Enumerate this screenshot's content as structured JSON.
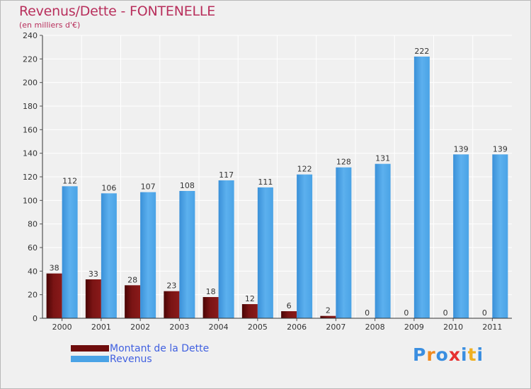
{
  "header": {
    "title": "Revenus/Dette - FONTENELLE",
    "subtitle": "(en milliers d'€)"
  },
  "legend": {
    "items": [
      {
        "label": "Montant de la Dette",
        "color": "#6e0c0c"
      },
      {
        "label": "Revenus",
        "color": "#4aa3e6"
      }
    ]
  },
  "logo": {
    "text": "Proxiti",
    "letters": [
      "P",
      "r",
      "o",
      "x",
      "i",
      "t",
      "i"
    ],
    "colors": [
      "#3a8ee0",
      "#f08a20",
      "#3a8ee0",
      "#e63030",
      "#3a8ee0",
      "#f0b020",
      "#3a8ee0"
    ]
  },
  "chart_data": {
    "type": "bar",
    "title": "Revenus/Dette - FONTENELLE",
    "subtitle": "(en milliers d'€)",
    "categories": [
      "2000",
      "2001",
      "2002",
      "2003",
      "2004",
      "2005",
      "2006",
      "2007",
      "2008",
      "2009",
      "2010",
      "2011"
    ],
    "series": [
      {
        "name": "Montant de la Dette",
        "color": "#6e0c0c",
        "values": [
          38,
          33,
          28,
          23,
          18,
          12,
          6,
          2,
          0,
          0,
          0,
          0
        ]
      },
      {
        "name": "Revenus",
        "color": "#4aa3e6",
        "values": [
          112,
          106,
          107,
          108,
          117,
          111,
          122,
          128,
          131,
          222,
          139,
          139
        ]
      }
    ],
    "ylim": [
      0,
      240
    ],
    "yticks": [
      0,
      20,
      40,
      60,
      80,
      100,
      120,
      140,
      160,
      180,
      200,
      220,
      240
    ],
    "grid": true,
    "legend_position": "bottom-left"
  }
}
